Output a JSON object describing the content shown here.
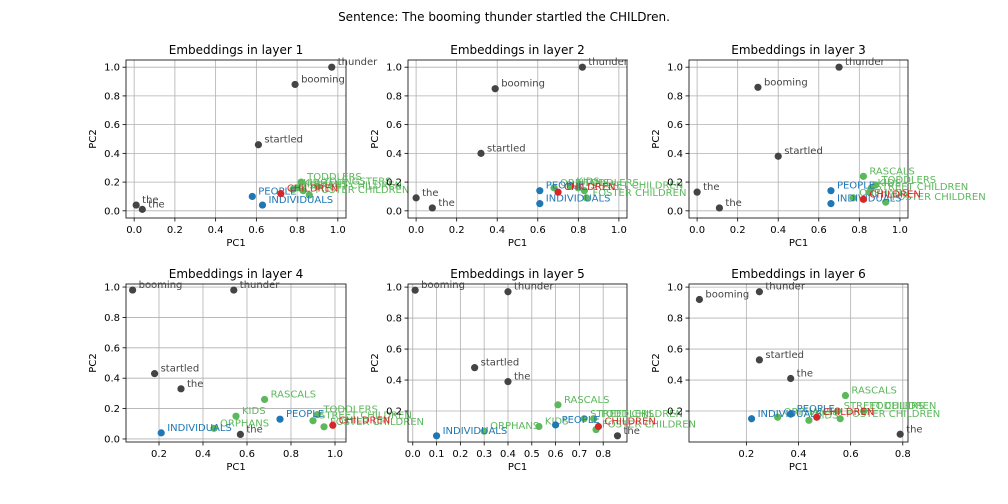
{
  "figure": {
    "suptitle": "Sentence: The booming thunder startled the CHILDren."
  },
  "colors": {
    "context": "#444444",
    "target": "#d62728",
    "group_blue": "#1f77b4",
    "group_green": "#5cb85c"
  },
  "chart_data": [
    {
      "type": "scatter",
      "title": "Embeddings in layer 1",
      "xlabel": "PC1",
      "ylabel": "PC2",
      "xlim": [
        -0.04,
        1.04
      ],
      "ylim": [
        -0.05,
        1.05
      ],
      "xticks": [
        "0.0",
        "0.2",
        "0.4",
        "0.6",
        "0.8",
        "1.0"
      ],
      "yticks": [
        "0.0",
        "0.2",
        "0.4",
        "0.6",
        "0.8",
        "1.0"
      ],
      "grid": true,
      "points": [
        {
          "label": "thunder",
          "x": 0.97,
          "y": 1.0,
          "group": "context"
        },
        {
          "label": "booming",
          "x": 0.79,
          "y": 0.88,
          "group": "context"
        },
        {
          "label": "startled",
          "x": 0.61,
          "y": 0.46,
          "group": "context"
        },
        {
          "label": "the",
          "x": 0.01,
          "y": 0.04,
          "group": "context"
        },
        {
          "label": "the",
          "x": 0.04,
          "y": 0.01,
          "group": "context"
        },
        {
          "label": "PEOPLE",
          "x": 0.58,
          "y": 0.1,
          "group": "group_blue"
        },
        {
          "label": "INDIVIDUALS",
          "x": 0.63,
          "y": 0.04,
          "group": "group_blue"
        },
        {
          "label": "CHILDREN",
          "x": 0.72,
          "y": 0.12,
          "group": "target"
        },
        {
          "label": "TODDLERS",
          "x": 0.82,
          "y": 0.2,
          "group": "group_green"
        },
        {
          "label": "KIDS",
          "x": 0.8,
          "y": 0.16,
          "group": "group_green"
        },
        {
          "label": "YOUNGSTERS",
          "x": 0.9,
          "y": 0.17,
          "group": "group_green"
        },
        {
          "label": "STREET CHILDREN",
          "x": 0.83,
          "y": 0.14,
          "group": "group_green"
        },
        {
          "label": "FOSTER CHILDREN",
          "x": 0.86,
          "y": 0.11,
          "group": "group_green"
        },
        {
          "label": "ORPHANS",
          "x": 0.78,
          "y": 0.15,
          "group": "group_green"
        }
      ]
    },
    {
      "type": "scatter",
      "title": "Embeddings in layer 2",
      "xlabel": "PC1",
      "ylabel": "PC2",
      "xlim": [
        -0.04,
        1.04
      ],
      "ylim": [
        -0.05,
        1.05
      ],
      "xticks": [
        "0.0",
        "0.2",
        "0.4",
        "0.6",
        "0.8",
        "1.0"
      ],
      "yticks": [
        "0.0",
        "0.2",
        "0.4",
        "0.6",
        "0.8",
        "1.0"
      ],
      "grid": true,
      "points": [
        {
          "label": "thunder",
          "x": 0.82,
          "y": 1.0,
          "group": "context"
        },
        {
          "label": "booming",
          "x": 0.39,
          "y": 0.85,
          "group": "context"
        },
        {
          "label": "startled",
          "x": 0.32,
          "y": 0.4,
          "group": "context"
        },
        {
          "label": "the",
          "x": 0.0,
          "y": 0.09,
          "group": "context"
        },
        {
          "label": "the",
          "x": 0.08,
          "y": 0.02,
          "group": "context"
        },
        {
          "label": "PEOPLE",
          "x": 0.61,
          "y": 0.14,
          "group": "group_blue"
        },
        {
          "label": "INDIVIDUALS",
          "x": 0.61,
          "y": 0.05,
          "group": "group_blue"
        },
        {
          "label": "CHILDREN",
          "x": 0.7,
          "y": 0.13,
          "group": "target"
        },
        {
          "label": "TODDLERS",
          "x": 0.8,
          "y": 0.16,
          "group": "group_green"
        },
        {
          "label": "KIDS",
          "x": 0.76,
          "y": 0.17,
          "group": "group_green"
        },
        {
          "label": "STREET CHILDREN",
          "x": 0.83,
          "y": 0.14,
          "group": "group_green"
        },
        {
          "label": "FOSTER CHILDREN",
          "x": 0.84,
          "y": 0.09,
          "group": "group_green"
        },
        {
          "label": "ORPHANS",
          "x": 0.68,
          "y": 0.16,
          "group": "group_green"
        }
      ]
    },
    {
      "type": "scatter",
      "title": "Embeddings in layer 3",
      "xlabel": "PC1",
      "ylabel": "PC2",
      "xlim": [
        -0.04,
        1.04
      ],
      "ylim": [
        -0.05,
        1.05
      ],
      "xticks": [
        "0.0",
        "0.2",
        "0.4",
        "0.6",
        "0.8",
        "1.0"
      ],
      "yticks": [
        "0.0",
        "0.2",
        "0.4",
        "0.6",
        "0.8",
        "1.0"
      ],
      "grid": true,
      "points": [
        {
          "label": "thunder",
          "x": 0.7,
          "y": 1.0,
          "group": "context"
        },
        {
          "label": "booming",
          "x": 0.3,
          "y": 0.86,
          "group": "context"
        },
        {
          "label": "startled",
          "x": 0.4,
          "y": 0.38,
          "group": "context"
        },
        {
          "label": "the",
          "x": 0.0,
          "y": 0.13,
          "group": "context"
        },
        {
          "label": "the",
          "x": 0.11,
          "y": 0.02,
          "group": "context"
        },
        {
          "label": "PEOPLE",
          "x": 0.66,
          "y": 0.14,
          "group": "group_blue"
        },
        {
          "label": "INDIVIDUALS",
          "x": 0.66,
          "y": 0.05,
          "group": "group_blue"
        },
        {
          "label": "CHILDREN",
          "x": 0.82,
          "y": 0.08,
          "group": "target"
        },
        {
          "label": "RASCALS",
          "x": 0.82,
          "y": 0.24,
          "group": "group_green"
        },
        {
          "label": "TODDLERS",
          "x": 0.88,
          "y": 0.18,
          "group": "group_green"
        },
        {
          "label": "KIDS",
          "x": 0.86,
          "y": 0.16,
          "group": "group_green"
        },
        {
          "label": "STREET CHILDREN",
          "x": 0.85,
          "y": 0.13,
          "group": "group_green"
        },
        {
          "label": "FOSTER CHILDREN",
          "x": 0.93,
          "y": 0.06,
          "group": "group_green"
        },
        {
          "label": "ORPHANS",
          "x": 0.77,
          "y": 0.09,
          "group": "group_green"
        }
      ]
    },
    {
      "type": "scatter",
      "title": "Embeddings in layer 4",
      "xlabel": "PC1",
      "ylabel": "PC2",
      "xlim": [
        0.05,
        1.05
      ],
      "ylim": [
        -0.02,
        1.02
      ],
      "xticks": [
        "0.2",
        "0.4",
        "0.6",
        "0.8",
        "1.0"
      ],
      "yticks": [
        "0.0",
        "0.2",
        "0.4",
        "0.6",
        "0.8",
        "1.0"
      ],
      "grid": true,
      "points": [
        {
          "label": "booming",
          "x": 0.08,
          "y": 0.98,
          "group": "context"
        },
        {
          "label": "thunder",
          "x": 0.54,
          "y": 0.98,
          "group": "context"
        },
        {
          "label": "startled",
          "x": 0.18,
          "y": 0.43,
          "group": "context"
        },
        {
          "label": "the",
          "x": 0.3,
          "y": 0.33,
          "group": "context"
        },
        {
          "label": "the",
          "x": 0.57,
          "y": 0.03,
          "group": "context"
        },
        {
          "label": "INDIVIDUALS",
          "x": 0.21,
          "y": 0.04,
          "group": "group_blue"
        },
        {
          "label": "PEOPLE",
          "x": 0.75,
          "y": 0.13,
          "group": "group_blue"
        },
        {
          "label": "CHILDREN",
          "x": 0.99,
          "y": 0.09,
          "group": "target"
        },
        {
          "label": "RASCALS",
          "x": 0.68,
          "y": 0.26,
          "group": "group_green"
        },
        {
          "label": "KIDS",
          "x": 0.55,
          "y": 0.15,
          "group": "group_green"
        },
        {
          "label": "TODDLERS",
          "x": 0.92,
          "y": 0.16,
          "group": "group_green"
        },
        {
          "label": "STREET CHILDREN",
          "x": 0.9,
          "y": 0.12,
          "group": "group_green"
        },
        {
          "label": "FOSTER CHILDREN",
          "x": 0.95,
          "y": 0.08,
          "group": "group_green"
        },
        {
          "label": "ORPHANS",
          "x": 0.45,
          "y": 0.07,
          "group": "group_green"
        }
      ]
    },
    {
      "type": "scatter",
      "title": "Embeddings in layer 5",
      "xlabel": "PC1",
      "ylabel": "PC2",
      "xlim": [
        -0.02,
        0.9
      ],
      "ylim": [
        0.0,
        1.02
      ],
      "xticks": [
        "0.0",
        "0.1",
        "0.2",
        "0.3",
        "0.4",
        "0.5",
        "0.6",
        "0.7",
        "0.8"
      ],
      "yticks": [
        "0.2",
        "0.4",
        "0.6",
        "0.8",
        "1.0"
      ],
      "grid": true,
      "points": [
        {
          "label": "booming",
          "x": 0.01,
          "y": 0.98,
          "group": "context"
        },
        {
          "label": "thunder",
          "x": 0.4,
          "y": 0.97,
          "group": "context"
        },
        {
          "label": "startled",
          "x": 0.26,
          "y": 0.48,
          "group": "context"
        },
        {
          "label": "the",
          "x": 0.4,
          "y": 0.39,
          "group": "context"
        },
        {
          "label": "the",
          "x": 0.86,
          "y": 0.04,
          "group": "context"
        },
        {
          "label": "INDIVIDUALS",
          "x": 0.1,
          "y": 0.04,
          "group": "group_blue"
        },
        {
          "label": "PEOPLE",
          "x": 0.6,
          "y": 0.11,
          "group": "group_blue"
        },
        {
          "label": "CHILDREN",
          "x": 0.78,
          "y": 0.1,
          "group": "target"
        },
        {
          "label": "RASCALS",
          "x": 0.61,
          "y": 0.24,
          "group": "group_green"
        },
        {
          "label": "STREET CHILDREN",
          "x": 0.72,
          "y": 0.15,
          "group": "group_green"
        },
        {
          "label": "TODDLERS",
          "x": 0.76,
          "y": 0.15,
          "group": "group_green"
        },
        {
          "label": "KIDS",
          "x": 0.53,
          "y": 0.1,
          "group": "group_green"
        },
        {
          "label": "FOSTER CHILDREN",
          "x": 0.77,
          "y": 0.08,
          "group": "group_green"
        },
        {
          "label": "ORPHANS",
          "x": 0.3,
          "y": 0.07,
          "group": "group_green"
        }
      ]
    },
    {
      "type": "scatter",
      "title": "Embeddings in layer 6",
      "xlabel": "PC1",
      "ylabel": "PC2",
      "xlim": [
        -0.02,
        0.82
      ],
      "ylim": [
        0.0,
        1.02
      ],
      "xticks": [
        "0.2",
        "0.4",
        "0.6",
        "0.8"
      ],
      "yticks": [
        "0.2",
        "0.4",
        "0.6",
        "0.8",
        "1.0"
      ],
      "grid": true,
      "points": [
        {
          "label": "booming",
          "x": 0.02,
          "y": 0.92,
          "group": "context"
        },
        {
          "label": "thunder",
          "x": 0.25,
          "y": 0.97,
          "group": "context"
        },
        {
          "label": "startled",
          "x": 0.25,
          "y": 0.53,
          "group": "context"
        },
        {
          "label": "the",
          "x": 0.37,
          "y": 0.41,
          "group": "context"
        },
        {
          "label": "the",
          "x": 0.79,
          "y": 0.05,
          "group": "context"
        },
        {
          "label": "INDIVIDUALS",
          "x": 0.22,
          "y": 0.15,
          "group": "group_blue"
        },
        {
          "label": "PEOPLE",
          "x": 0.37,
          "y": 0.18,
          "group": "group_blue"
        },
        {
          "label": "CHILDREN",
          "x": 0.47,
          "y": 0.16,
          "group": "target"
        },
        {
          "label": "RASCALS",
          "x": 0.58,
          "y": 0.3,
          "group": "group_green"
        },
        {
          "label": "STREET CHILDREN",
          "x": 0.55,
          "y": 0.2,
          "group": "group_green"
        },
        {
          "label": "TODDLERS",
          "x": 0.65,
          "y": 0.2,
          "group": "group_green"
        },
        {
          "label": "KIDS",
          "x": 0.44,
          "y": 0.14,
          "group": "group_green"
        },
        {
          "label": "FOSTER CHILDREN",
          "x": 0.56,
          "y": 0.15,
          "group": "group_green"
        },
        {
          "label": "ORPHANS",
          "x": 0.32,
          "y": 0.16,
          "group": "group_green"
        }
      ]
    }
  ]
}
